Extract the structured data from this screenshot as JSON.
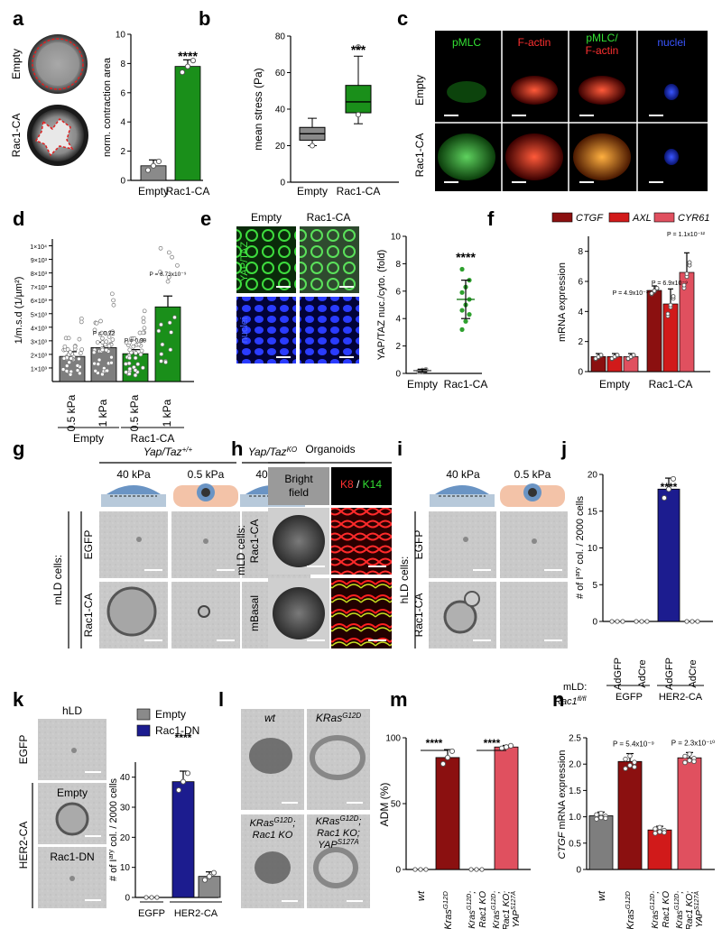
{
  "panel_letters": [
    "a",
    "b",
    "c",
    "d",
    "e",
    "f",
    "g",
    "h",
    "i",
    "j",
    "k",
    "l",
    "m",
    "n"
  ],
  "colors": {
    "gray": "#8a8a8a",
    "green": "#1a8f1a",
    "darkred": "#8b1010",
    "red": "#d11a1a",
    "pink": "#e0505f",
    "navy": "#1c1c8f",
    "nucleus": "#1a2fd8",
    "k14": "#33cc33"
  },
  "a": {
    "row_labels": [
      "Empty",
      "Rac1-CA"
    ],
    "significance": "****",
    "chart": {
      "type": "bar",
      "categories": [
        "Empty",
        "Rac1-CA"
      ],
      "values": [
        1.0,
        7.8
      ],
      "errors": [
        0.4,
        0.45
      ],
      "points": [
        [
          0.7,
          1.0,
          1.3
        ],
        [
          7.4,
          7.8,
          8.2
        ]
      ],
      "ylabel": "norm. contraction area",
      "ylim": [
        0,
        10
      ],
      "yticks": [
        "0",
        "2",
        "4",
        "6",
        "8",
        "10"
      ]
    }
  },
  "b": {
    "significance": "***",
    "chart": {
      "type": "box",
      "categories": [
        "Empty",
        "Rac1-CA"
      ],
      "boxes": [
        {
          "min": 20,
          "q1": 23,
          "median": 26.5,
          "q3": 30,
          "max": 35,
          "points": [
            20
          ]
        },
        {
          "min": 32,
          "q1": 38,
          "median": 44,
          "q3": 53,
          "max": 69,
          "points": [
            37,
            74
          ]
        }
      ],
      "ylabel": "mean stress (Pa)",
      "ylim": [
        0,
        80
      ],
      "yticks": [
        "0",
        "20",
        "40",
        "60",
        "80"
      ]
    }
  },
  "c": {
    "col_labels": [
      "pMLC",
      "F-actin",
      "pMLC/",
      "F-actin",
      "nuclei"
    ],
    "row_labels": [
      "Empty",
      "Rac1-CA"
    ]
  },
  "d": {
    "chart": {
      "type": "bar",
      "categories": [
        "0.5 kPa",
        "1 kPa",
        "0.5 kPa",
        "1 kPa"
      ],
      "values": [
        1.85,
        2.5,
        2.05,
        5.5
      ],
      "errors": [
        0.35,
        0.4,
        0.3,
        0.8
      ],
      "pvalues": [
        "",
        "P = 0.72",
        "P = 0.99",
        "P = 8.73x10⁻⁹"
      ],
      "ylabel": "1/m.s.d (1/µm²)",
      "ylim": [
        0,
        10.5
      ],
      "yticks": [
        "1×10³",
        "2×10³",
        "3×10³",
        "4×10³",
        "5×10³",
        "6×10³",
        "7×10³",
        "8×10³",
        "9×10³",
        "1×10⁴"
      ],
      "groups": [
        "Empty",
        "Rac1-CA"
      ]
    }
  },
  "e": {
    "col_labels": [
      "Empty",
      "Rac1-CA"
    ],
    "row_labels": [
      "YAP/TAZ",
      "nuclei"
    ],
    "significance": "****",
    "chart": {
      "type": "scatter",
      "categories": [
        "Empty",
        "Rac1-CA"
      ],
      "means": [
        0.2,
        5.4
      ],
      "sd": [
        0.1,
        1.4
      ],
      "points": [
        [
          0.1,
          0.15,
          0.2,
          0.2,
          0.25,
          0.3,
          0.15,
          0.2
        ],
        [
          3.2,
          3.8,
          4.3,
          4.6,
          5.0,
          5.4,
          5.9,
          6.3,
          6.8,
          7.6
        ]
      ],
      "ylabel": "YAP/TAZ nuc./cyto. (fold)",
      "ylim": [
        0,
        10
      ],
      "yticks": [
        "0",
        "2",
        "4",
        "6",
        "8",
        "10"
      ]
    }
  },
  "f": {
    "chart": {
      "type": "bar",
      "legend": [
        "CTGF",
        "AXL",
        "CYR61"
      ],
      "groups": [
        "Empty",
        "Rac1-CA"
      ],
      "series": [
        {
          "name": "CTGF",
          "values": [
            1.0,
            5.4
          ],
          "errors": [
            0.2,
            0.3
          ]
        },
        {
          "name": "AXL",
          "values": [
            1.0,
            4.5
          ],
          "errors": [
            0.2,
            1.0
          ]
        },
        {
          "name": "CYR61",
          "values": [
            1.0,
            6.6
          ],
          "errors": [
            0.2,
            1.3
          ]
        }
      ],
      "pvalues": [
        "P = 4.9x10⁻¹⁰",
        "P = 6.9x10⁻⁹",
        "P = 1.1x10⁻¹²"
      ],
      "ylabel": "mRNA expression",
      "ylim": [
        0,
        9
      ],
      "yticks": [
        "0",
        "2",
        "4",
        "6",
        "8"
      ]
    }
  },
  "g": {
    "genotype_wt": "Yap/Taz",
    "genotype_wt_sup": "+/+",
    "genotype_ko": "Yap/Taz",
    "genotype_ko_sup": "KO",
    "stiffness": [
      "40 kPa",
      "0.5 kPa",
      "40 kPa"
    ],
    "row_labels": [
      "EGFP",
      "Rac1-CA"
    ],
    "side_label": "mLD cells:"
  },
  "h": {
    "title": "Organoids",
    "col_labels": [
      "Bright",
      "field"
    ],
    "stain_a": "K8",
    "stain_sep": " / ",
    "stain_b": "K14",
    "side_label": "mLD cells:",
    "row_labels": [
      "Rac1-CA",
      "mBasal"
    ]
  },
  "i": {
    "stiffness": [
      "40 kPa",
      "0.5 kPa"
    ],
    "side_label": "hLD cells:",
    "row_labels": [
      "EGFP",
      "Rac1-CA"
    ]
  },
  "j": {
    "significance": "****",
    "chart": {
      "type": "bar",
      "categories": [
        "AdGFP",
        "AdCre",
        "AdGFP",
        "AdCre"
      ],
      "values": [
        0,
        0,
        18,
        0
      ],
      "errors": [
        0,
        0,
        1.5,
        0
      ],
      "ylabel_a": "# of I",
      "ylabel_sup": "ary",
      "ylabel_b": " col. / 2000 cells",
      "ylim": [
        0,
        20
      ],
      "yticks": [
        "0",
        "5",
        "10",
        "15",
        "20"
      ],
      "group_prefix": "mLD:",
      "group_sub": "Rac1",
      "group_sub_sup": "fl/fl",
      "groups": [
        "EGFP",
        "HER2-CA"
      ]
    }
  },
  "k": {
    "title": "hLD",
    "row_labels": [
      "EGFP",
      "Empty",
      "Rac1-DN"
    ],
    "side_label": "HER2-CA",
    "significance": "****",
    "chart": {
      "type": "bar",
      "legend": [
        "Empty",
        "Rac1-DN"
      ],
      "values": [
        0,
        38.5,
        7
      ],
      "errors": [
        0,
        3.5,
        1.5
      ],
      "ylabel_a": "# of I",
      "ylabel_sup": "ary",
      "ylabel_b": " col. / 2000 cells",
      "ylim": [
        0,
        45
      ],
      "yticks": [
        "0",
        "10",
        "20",
        "30",
        "40"
      ],
      "groups": [
        "EGFP",
        "HER2-CA"
      ]
    }
  },
  "l": {
    "labels": [
      "wt",
      "KRas",
      "G12D",
      "KRas",
      "G12D",
      ";",
      "Rac1 KO",
      "KRas",
      "G12D",
      ";",
      "Rac1 KO;",
      "YAP",
      "S127A"
    ]
  },
  "m": {
    "significance": [
      "****",
      "****"
    ],
    "chart": {
      "type": "bar",
      "categories": [
        "wt",
        "Kras G12D",
        "Kras G12D; Rac1 KO",
        "Kras G12D; Rac1 KO; YAP S127A"
      ],
      "values": [
        0,
        85,
        0,
        93
      ],
      "errors": [
        0,
        6,
        0,
        1.2
      ],
      "ylabel": "ADM (%)",
      "ylim": [
        0,
        100
      ],
      "yticks": [
        "0",
        "50",
        "100"
      ]
    }
  },
  "n": {
    "chart": {
      "type": "bar",
      "categories": [
        "wt",
        "Kras G12D",
        "Kras G12D; Rac1 KO",
        "Kras G12D; Rac1 KO; YAP S127A"
      ],
      "values": [
        1.02,
        2.05,
        0.75,
        2.12
      ],
      "errors": [
        0.07,
        0.15,
        0.07,
        0.1
      ],
      "pvalues": [
        "",
        "P = 5.4x10⁻⁹",
        "",
        "P = 2.3x10⁻¹⁰"
      ],
      "ylabel_a": "CTGF",
      "ylabel_b": " mRNA expression",
      "ylim": [
        0,
        2.5
      ],
      "yticks": [
        "0",
        "0.5",
        "1.0",
        "1.5",
        "2.0",
        "2.5"
      ]
    }
  },
  "xlabels": {
    "wt": "wt",
    "kras": "Kras",
    "g12d": "G12D",
    "rac1ko": "Rac1 KO",
    "yap": "YAP",
    "s127a": "S127A"
  }
}
